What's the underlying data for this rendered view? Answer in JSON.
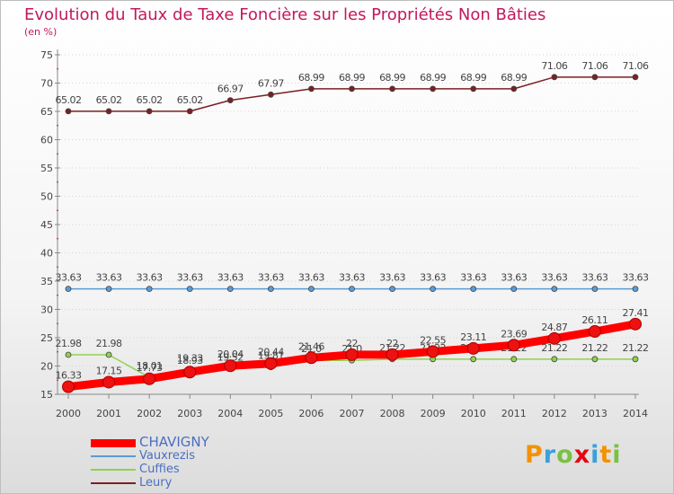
{
  "chart_data": {
    "type": "line",
    "title": "Evolution du Taux de Taxe Foncière sur les Propriétés Non Bâties",
    "subtitle": "(en %)",
    "xlabel": "",
    "ylabel": "",
    "x": [
      "2000",
      "2001",
      "2002",
      "2003",
      "2004",
      "2005",
      "2006",
      "2007",
      "2008",
      "2009",
      "2010",
      "2011",
      "2012",
      "2013",
      "2014"
    ],
    "y_ticks": [
      "15",
      "20",
      "25",
      "30",
      "35",
      "40",
      "45",
      "50",
      "55",
      "60",
      "65",
      "70",
      "75"
    ],
    "ylim": [
      15,
      75
    ],
    "legend_position": "bottom-left",
    "series": [
      {
        "name": "CHAVIGNY",
        "color": "#ff0000",
        "values": [
          16.33,
          17.15,
          17.73,
          18.93,
          20.04,
          20.44,
          21.46,
          22,
          22,
          22.55,
          23.11,
          23.69,
          24.87,
          26.11,
          27.41
        ],
        "labels": [
          "16.33",
          "17.15",
          "17.73",
          "18.93",
          "20.04",
          "20.44",
          "21.46",
          "22",
          "22",
          "22.55",
          "23.11",
          "23.69",
          "24.87",
          "26.11",
          "27.41"
        ]
      },
      {
        "name": "Vauxrezis",
        "color": "#5b9bd5",
        "values": [
          33.63,
          33.63,
          33.63,
          33.63,
          33.63,
          33.63,
          33.63,
          33.63,
          33.63,
          33.63,
          33.63,
          33.63,
          33.63,
          33.63,
          33.63
        ],
        "labels": [
          "33.63",
          "33.63",
          "33.63",
          "33.63",
          "33.63",
          "33.63",
          "33.63",
          "33.63",
          "33.63",
          "33.63",
          "33.63",
          "33.63",
          "33.63",
          "33.63",
          "33.63"
        ]
      },
      {
        "name": "Cuffies",
        "color": "#8fd14f",
        "values": [
          21.98,
          21.98,
          18.01,
          19.33,
          19.52,
          19.81,
          21.0,
          21.0,
          21.22,
          21.22,
          21.22,
          21.22,
          21.22,
          21.22,
          21.22
        ],
        "labels": [
          "21.98",
          "21.98",
          "18.01",
          "19.33",
          "19.52",
          "19.81",
          "21.0",
          "21.0",
          "21.22",
          "21.22",
          "21.22",
          "21.22",
          "21.22",
          "21.22",
          "21.22"
        ]
      },
      {
        "name": "Leury",
        "color": "#7b1f24",
        "values": [
          65.02,
          65.02,
          65.02,
          65.02,
          66.97,
          67.97,
          68.99,
          68.99,
          68.99,
          68.99,
          68.99,
          68.99,
          71.06,
          71.06,
          71.06
        ],
        "labels": [
          "65.02",
          "65.02",
          "65.02",
          "65.02",
          "66.97",
          "67.97",
          "68.99",
          "68.99",
          "68.99",
          "68.99",
          "68.99",
          "68.99",
          "71.06",
          "71.06",
          "71.06"
        ]
      }
    ]
  },
  "brand": {
    "letters": [
      "P",
      "r",
      "o",
      "x",
      "i",
      "t",
      "i"
    ],
    "colors": [
      "#f39200",
      "#3aa0dc",
      "#7ac143",
      "#e30613",
      "#3aa0dc",
      "#f39200",
      "#7ac143"
    ]
  }
}
